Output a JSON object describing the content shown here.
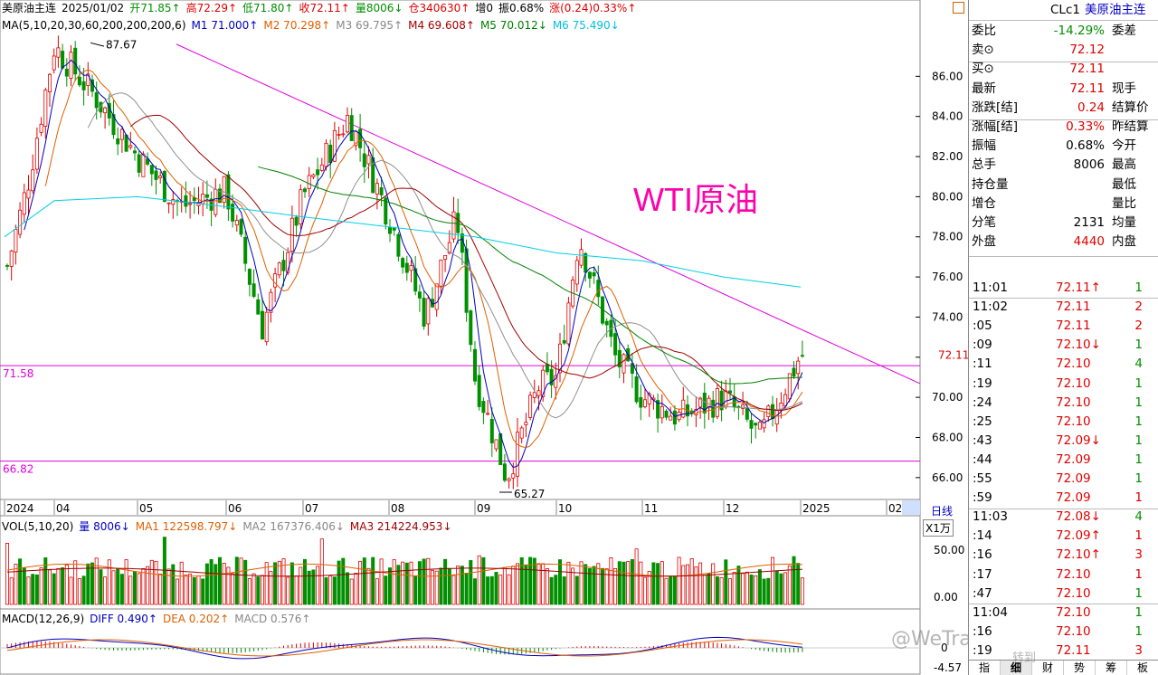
{
  "header": {
    "line1": [
      {
        "text": "美原油主连",
        "color": "#000"
      },
      {
        "text": "2025/01/02",
        "color": "#000"
      },
      {
        "text": "开71.85↑",
        "color": "#009000"
      },
      {
        "text": "高72.29↑",
        "color": "#e00000"
      },
      {
        "text": "低71.80↑",
        "color": "#009000"
      },
      {
        "text": "收72.11↑",
        "color": "#e00000"
      },
      {
        "text": "量8006↓",
        "color": "#009000"
      },
      {
        "text": "仓340630↑",
        "color": "#e00000"
      },
      {
        "text": "增0",
        "color": "#000"
      },
      {
        "text": "振0.68%",
        "color": "#000"
      },
      {
        "text": "涨(0.24)0.33%↑",
        "color": "#e00000"
      }
    ],
    "line2": [
      {
        "text": "MA(5,10,20,30,60,200,200,200,6)",
        "color": "#000"
      },
      {
        "text": "M1 71.000↑",
        "color": "#0000c0"
      },
      {
        "text": "M2 70.298↑",
        "color": "#e06000"
      },
      {
        "text": "M3 69.795↑",
        "color": "#888888"
      },
      {
        "text": "M4 69.608↑",
        "color": "#a00000"
      },
      {
        "text": "M5 70.012↓",
        "color": "#008000"
      },
      {
        "text": "M6 75.490↓",
        "color": "#00c0e0"
      }
    ]
  },
  "chart_annotation": "WTI原油",
  "chart_data": {
    "type": "candlestick",
    "title": "WTI原油",
    "ylim": [
      65,
      88
    ],
    "yticks": [
      "86.00",
      "84.00",
      "82.00",
      "80.00",
      "78.00",
      "76.00",
      "74.00",
      "72.00",
      "70.00",
      "68.00",
      "66.00"
    ],
    "months": [
      "2024",
      "04",
      "05",
      "06",
      "07",
      "08",
      "09",
      "10",
      "11",
      "12",
      "2025",
      "02"
    ],
    "high_label": "87.67",
    "low_label": "65.27",
    "level_lines": [
      {
        "label": "71.58",
        "value": 71.58
      },
      {
        "label": "66.82",
        "value": 66.82
      }
    ],
    "trendline": {
      "from_month": "04",
      "from_value": 87.6,
      "to_month": "2025",
      "to_value": 70.2
    },
    "last_price": "72.11",
    "close_path": [
      [
        "2024",
        76.0
      ],
      [
        "03-mid",
        80.5
      ],
      [
        "04",
        87.5
      ],
      [
        "04-mid",
        85.0
      ],
      [
        "05",
        82.0
      ],
      [
        "05-mid",
        79.5
      ],
      [
        "06",
        80.3
      ],
      [
        "06-mid",
        73.5
      ],
      [
        "07",
        80.0
      ],
      [
        "07-mid",
        84.0
      ],
      [
        "08",
        79.0
      ],
      [
        "08-mid",
        74.0
      ],
      [
        "08-end",
        79.0
      ],
      [
        "09",
        71.0
      ],
      [
        "09-mid",
        66.0
      ],
      [
        "09-end",
        70.5
      ],
      [
        "10",
        71.0
      ],
      [
        "10-mid",
        78.0
      ],
      [
        "10-end",
        72.0
      ],
      [
        "11",
        70.0
      ],
      [
        "11-mid",
        69.0
      ],
      [
        "12",
        70.0
      ],
      [
        "12-mid",
        68.0
      ],
      [
        "2025",
        72.1
      ]
    ],
    "ma200": [
      [
        "2024",
        78.0
      ],
      [
        "04",
        79.8
      ],
      [
        "05",
        80.0
      ],
      [
        "06",
        79.5
      ],
      [
        "07",
        79.0
      ],
      [
        "08",
        78.5
      ],
      [
        "09",
        78.0
      ],
      [
        "10",
        77.2
      ],
      [
        "11",
        76.8
      ],
      [
        "12",
        76.0
      ],
      [
        "2025",
        75.5
      ]
    ]
  },
  "x_axis_labels": [
    "2024",
    "04",
    "05",
    "06",
    "07",
    "08",
    "09",
    "10",
    "11",
    "12",
    "2025",
    "02"
  ],
  "period_label": "日线",
  "vol": {
    "header": [
      {
        "text": "VOL(5,10,20)",
        "color": "#000"
      },
      {
        "text": "量 8006↓",
        "color": "#0000c0"
      },
      {
        "text": "MA1 122598.797↓",
        "color": "#e06000"
      },
      {
        "text": "MA2 167376.406↓",
        "color": "#888888"
      },
      {
        "text": "MA3 214224.953↓",
        "color": "#a00000"
      }
    ],
    "unit": "X1万",
    "yticks": [
      "50.00",
      "0.00"
    ]
  },
  "macd": {
    "header": [
      {
        "text": "MACD(12,26,9)",
        "color": "#000"
      },
      {
        "text": "DIFF 0.490↑",
        "color": "#0000c0"
      },
      {
        "text": "DEA 0.202↑",
        "color": "#e06000"
      },
      {
        "text": "MACD 0.576↑",
        "color": "#888888"
      }
    ],
    "yticks": [
      "0",
      "-4.57"
    ]
  },
  "panel": {
    "symbol": "CLc1",
    "name": "美原油主连",
    "rows": [
      {
        "l": "委比",
        "v": "-14.29%",
        "vc": "#009000",
        "r": "委差"
      },
      {
        "l": "卖⊙",
        "v": "72.12",
        "vc": "#e00000",
        "r": ""
      },
      {
        "l": "买⊙",
        "v": "72.11",
        "vc": "#e00000",
        "r": ""
      },
      {
        "l": "最新",
        "v": "72.11",
        "vc": "#e00000",
        "r": "现手"
      },
      {
        "l": "涨跌[结]",
        "v": "0.24",
        "vc": "#e00000",
        "r": "结算价"
      },
      {
        "l": "涨幅[结]",
        "v": "0.33%",
        "vc": "#e00000",
        "r": "昨结算"
      },
      {
        "l": "振幅",
        "v": "0.68%",
        "vc": "#000",
        "r": "今开"
      },
      {
        "l": "总手",
        "v": "8006",
        "vc": "#000",
        "r": "最高"
      },
      {
        "l": "持仓量",
        "v": "",
        "vc": "#000",
        "r": "最低"
      },
      {
        "l": "增仓",
        "v": "",
        "vc": "#000",
        "r": "量比"
      },
      {
        "l": "分笔",
        "v": "2131",
        "vc": "#000",
        "r": "均量"
      },
      {
        "l": "外盘",
        "v": "4440",
        "vc": "#e00000",
        "r": "内盘"
      }
    ],
    "ticks": [
      {
        "t": "11:01",
        "p": "72.11↑",
        "pc": "#e00000",
        "q": "1",
        "qc": "#009000"
      },
      {
        "t": "11:02",
        "p": "72.11",
        "pc": "#e00000",
        "q": "2",
        "qc": "#e00000"
      },
      {
        "t": ":05",
        "p": "72.11",
        "pc": "#e00000",
        "q": "2",
        "qc": "#e00000"
      },
      {
        "t": ":09",
        "p": "72.10↓",
        "pc": "#e00000",
        "q": "1",
        "qc": "#009000"
      },
      {
        "t": ":11",
        "p": "72.10",
        "pc": "#e00000",
        "q": "4",
        "qc": "#009000"
      },
      {
        "t": ":19",
        "p": "72.10",
        "pc": "#e00000",
        "q": "1",
        "qc": "#009000"
      },
      {
        "t": ":24",
        "p": "72.10",
        "pc": "#e00000",
        "q": "1",
        "qc": "#009000"
      },
      {
        "t": ":25",
        "p": "72.10",
        "pc": "#e00000",
        "q": "1",
        "qc": "#009000"
      },
      {
        "t": ":43",
        "p": "72.09↓",
        "pc": "#e00000",
        "q": "1",
        "qc": "#009000"
      },
      {
        "t": ":44",
        "p": "72.09",
        "pc": "#e00000",
        "q": "1",
        "qc": "#009000"
      },
      {
        "t": ":55",
        "p": "72.09",
        "pc": "#e00000",
        "q": "1",
        "qc": "#009000"
      },
      {
        "t": ":59",
        "p": "72.09",
        "pc": "#e00000",
        "q": "1",
        "qc": "#e00000"
      },
      {
        "t": "11:03",
        "p": "72.08↓",
        "pc": "#e00000",
        "q": "4",
        "qc": "#009000"
      },
      {
        "t": ":14",
        "p": "72.09↑",
        "pc": "#e00000",
        "q": "1",
        "qc": "#e00000"
      },
      {
        "t": ":16",
        "p": "72.10↑",
        "pc": "#e00000",
        "q": "3",
        "qc": "#e00000"
      },
      {
        "t": ":17",
        "p": "72.10",
        "pc": "#e00000",
        "q": "1",
        "qc": "#e00000"
      },
      {
        "t": ":47",
        "p": "72.10",
        "pc": "#e00000",
        "q": "1",
        "qc": "#009000"
      },
      {
        "t": "11:04",
        "p": "72.10",
        "pc": "#e00000",
        "q": "1",
        "qc": "#009000"
      },
      {
        "t": ":16",
        "p": "72.10",
        "pc": "#e00000",
        "q": "1",
        "qc": "#009000"
      },
      {
        "t": ":19",
        "p": "72.11",
        "pc": "#e00000",
        "q": "3",
        "qc": "#e00000"
      }
    ],
    "tabs": [
      "指",
      "细",
      "财",
      "势",
      "筹",
      "板"
    ],
    "active_tab": 1
  },
  "watermark": [
    "@WeTrade众汇 官方",
    "转到"
  ]
}
